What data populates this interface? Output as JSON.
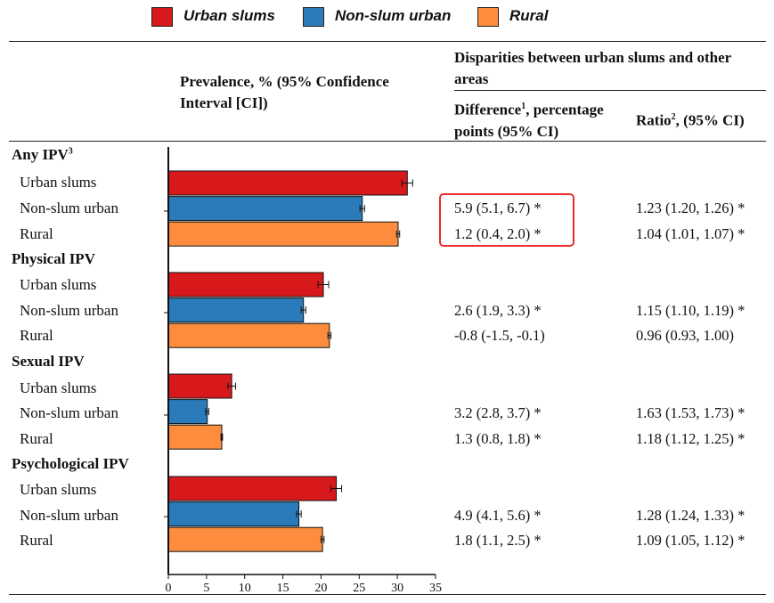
{
  "legend": [
    {
      "label": "Urban slums",
      "color": "#d7191c"
    },
    {
      "label": "Non-slum urban",
      "color": "#2b7bba"
    },
    {
      "label": "Rural",
      "color": "#fd8d3c"
    }
  ],
  "headers": {
    "prevalence": "Prevalence, % (95% Confidence Interval [CI])",
    "disparities": "Disparities between urban slums and other areas",
    "difference_main": "Difference",
    "difference_sup": "1",
    "difference_rest": ", percentage points (95% CI)",
    "ratio_main": "Ratio",
    "ratio_sup": "2",
    "ratio_rest": ", (95% CI)"
  },
  "groups": [
    {
      "name": "Any IPV",
      "sup": "3",
      "rows": [
        {
          "label": "Urban slums",
          "difference": "",
          "ratio": ""
        },
        {
          "label": "Non-slum urban",
          "difference": "5.9 (5.1, 6.7) *",
          "ratio": "1.23 (1.20, 1.26) *"
        },
        {
          "label": "Rural",
          "difference": "1.2 (0.4, 2.0) *",
          "ratio": "1.04 (1.01, 1.07) *"
        }
      ]
    },
    {
      "name": "Physical IPV",
      "sup": "",
      "rows": [
        {
          "label": "Urban slums",
          "difference": "",
          "ratio": ""
        },
        {
          "label": "Non-slum urban",
          "difference": "2.6 (1.9, 3.3) *",
          "ratio": "1.15 (1.10, 1.19) *"
        },
        {
          "label": "Rural",
          "difference": "-0.8 (-1.5, -0.1)",
          "ratio": "0.96 (0.93, 1.00)"
        }
      ]
    },
    {
      "name": "Sexual IPV",
      "sup": "",
      "rows": [
        {
          "label": "Urban slums",
          "difference": "",
          "ratio": ""
        },
        {
          "label": "Non-slum urban",
          "difference": "3.2 (2.8, 3.7) *",
          "ratio": "1.63 (1.53, 1.73) *"
        },
        {
          "label": "Rural",
          "difference": "1.3 (0.8, 1.8) *",
          "ratio": "1.18 (1.12, 1.25) *"
        }
      ]
    },
    {
      "name": "Psychological IPV",
      "sup": "",
      "rows": [
        {
          "label": "Urban slums",
          "difference": "",
          "ratio": ""
        },
        {
          "label": "Non-slum urban",
          "difference": "4.9 (4.1, 5.6) *",
          "ratio": "1.28 (1.24, 1.33) *"
        },
        {
          "label": "Rural",
          "difference": "1.8 (1.1, 2.5) *",
          "ratio": "1.09 (1.05, 1.12) *"
        }
      ]
    }
  ],
  "chart_data": {
    "type": "bar",
    "orientation": "horizontal",
    "title": "Prevalence, % (95% Confidence Interval [CI])",
    "categories": [
      "Any IPV",
      "Physical IPV",
      "Sexual IPV",
      "Psychological IPV"
    ],
    "series": [
      {
        "name": "Urban slums",
        "color": "#d7191c",
        "values": [
          31.3,
          20.3,
          8.3,
          22.0
        ],
        "ci_low": [
          30.6,
          19.6,
          7.8,
          21.3
        ],
        "ci_high": [
          32.0,
          21.0,
          8.8,
          22.7
        ]
      },
      {
        "name": "Non-slum urban",
        "color": "#2b7bba",
        "values": [
          25.4,
          17.7,
          5.1,
          17.1
        ],
        "ci_low": [
          25.1,
          17.4,
          4.9,
          16.8
        ],
        "ci_high": [
          25.7,
          18.0,
          5.3,
          17.4
        ]
      },
      {
        "name": "Rural",
        "color": "#fd8d3c",
        "values": [
          30.1,
          21.1,
          7.0,
          20.2
        ],
        "ci_low": [
          29.9,
          20.9,
          6.9,
          20.0
        ],
        "ci_high": [
          30.3,
          21.3,
          7.1,
          20.4
        ]
      }
    ],
    "xlim": [
      0,
      35
    ],
    "xticks": [
      "0",
      "5",
      "10",
      "15",
      "20",
      "25",
      "30",
      "35"
    ],
    "xlabel": "",
    "ylabel": ""
  },
  "highlight_note": "red box around Any IPV difference values"
}
